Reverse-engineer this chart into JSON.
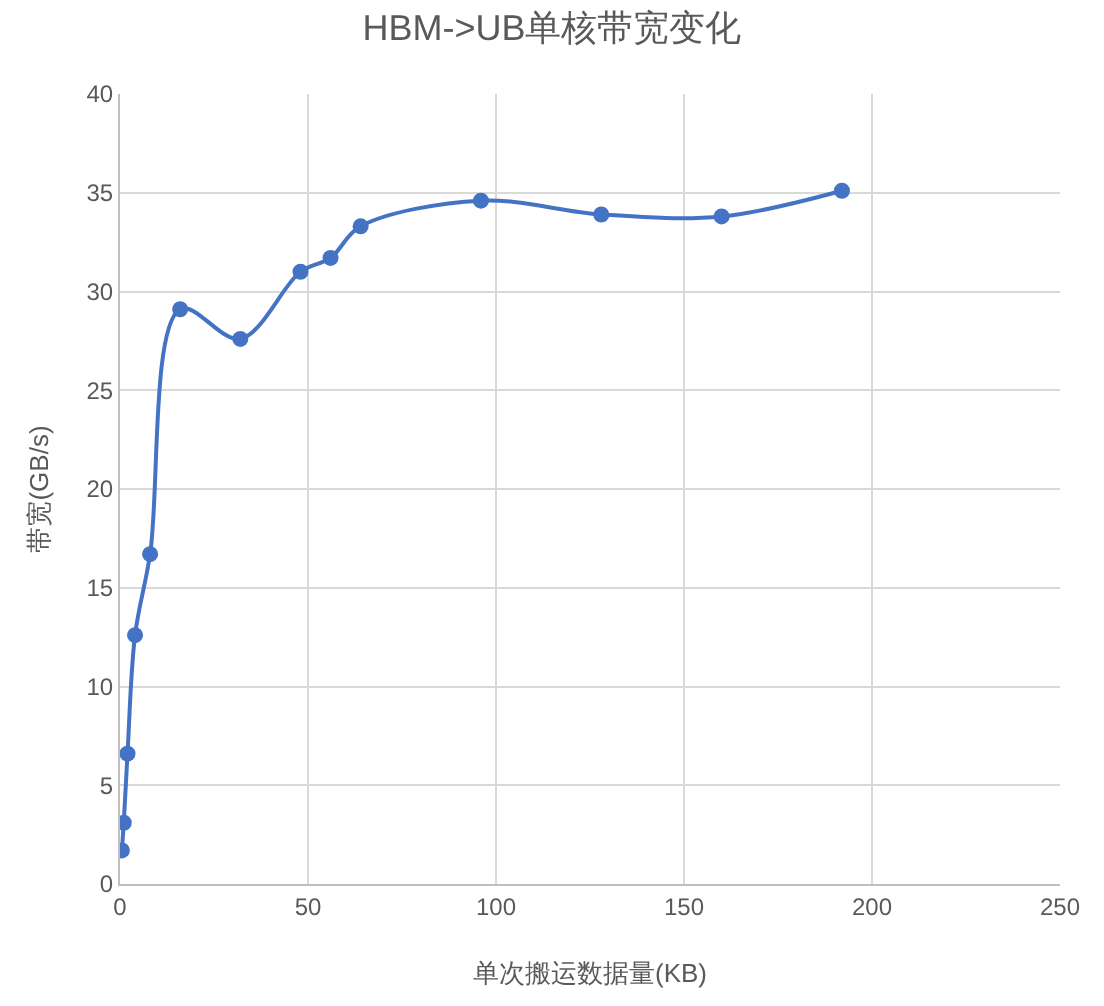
{
  "chart_data": {
    "type": "line",
    "title": "HBM->UB单核带宽变化",
    "xlabel": "单次搬运数据量(KB)",
    "ylabel": "带宽(GB/s)",
    "x": [
      0.5,
      1,
      2,
      4,
      8,
      16,
      32,
      48,
      56,
      64,
      96,
      128,
      160,
      192
    ],
    "series": [
      {
        "color": "#4472c4",
        "values": [
          1.7,
          3.1,
          6.6,
          12.6,
          16.7,
          29.1,
          27.6,
          31.0,
          31.7,
          33.3,
          34.6,
          33.9,
          33.8,
          35.1
        ]
      }
    ],
    "xlim": [
      0,
      250
    ],
    "xticks": [
      0,
      50,
      100,
      150,
      200,
      250
    ],
    "ylim": [
      0,
      40
    ],
    "yticks": [
      0,
      5,
      10,
      15,
      20,
      25,
      30,
      35,
      40
    ],
    "grid": true,
    "marker": "circle",
    "line_style": "solid"
  }
}
